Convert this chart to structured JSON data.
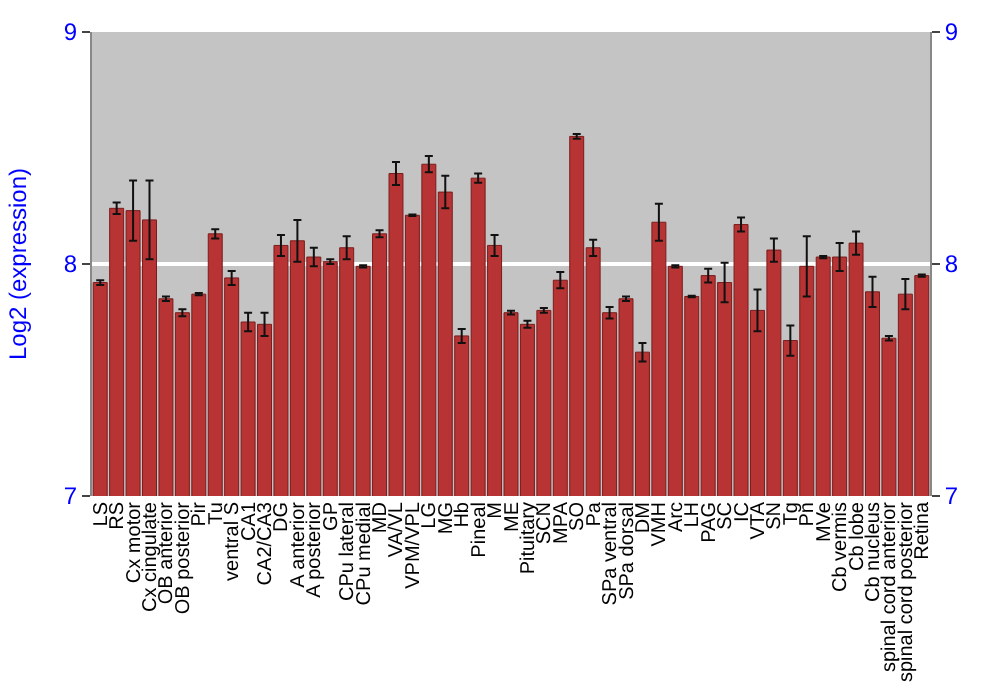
{
  "chart_data": {
    "type": "bar",
    "ylabel": "Log2 (expression)",
    "categories": [
      "LS",
      "RS",
      "Cx motor",
      "Cx cingulate",
      "OB anterior",
      "OB posterior",
      "Pir",
      "Tu",
      "ventral S",
      "CA1",
      "CA2/CA3",
      "DG",
      "A anterior",
      "A posterior",
      "GP",
      "CPu lateral",
      "CPu medial",
      "MD",
      "VA/VL",
      "VPM/VPL",
      "LG",
      "MG",
      "Hb",
      "Pineal",
      "M",
      "ME",
      "Pituitary",
      "SCN",
      "MPA",
      "SO",
      "Pa",
      "SPa ventral",
      "SPa dorsal",
      "DM",
      "VMH",
      "Arc",
      "LH",
      "PAG",
      "SC",
      "IC",
      "VTA",
      "SN",
      "Tg",
      "Pn",
      "MVe",
      "Cb vermis",
      "Cb lobe",
      "Cb nucleus",
      "spinal cord anterior",
      "spinal cord posterior",
      "Retina"
    ],
    "values": [
      7.92,
      8.24,
      8.23,
      8.19,
      7.85,
      7.79,
      7.87,
      8.13,
      7.94,
      7.75,
      7.74,
      8.08,
      8.1,
      8.03,
      8.01,
      8.07,
      7.99,
      8.13,
      8.39,
      8.21,
      8.43,
      8.31,
      7.69,
      8.37,
      8.08,
      7.79,
      7.74,
      7.8,
      7.93,
      8.55,
      8.07,
      7.79,
      7.85,
      7.62,
      8.18,
      7.99,
      7.86,
      7.95,
      7.92,
      8.17,
      7.8,
      8.06,
      7.67,
      7.99,
      8.03,
      8.03,
      8.09,
      7.88,
      7.68,
      7.87,
      7.95
    ],
    "errors": [
      0.01,
      0.025,
      0.13,
      0.17,
      0.01,
      0.015,
      0.005,
      0.02,
      0.03,
      0.04,
      0.05,
      0.045,
      0.09,
      0.04,
      0.01,
      0.05,
      0.005,
      0.015,
      0.05,
      0.003,
      0.035,
      0.07,
      0.03,
      0.02,
      0.045,
      0.008,
      0.015,
      0.01,
      0.035,
      0.01,
      0.035,
      0.025,
      0.01,
      0.04,
      0.08,
      0.005,
      0.003,
      0.03,
      0.085,
      0.03,
      0.09,
      0.05,
      0.065,
      0.13,
      0.005,
      0.06,
      0.05,
      0.065,
      0.01,
      0.065,
      0.005
    ],
    "color": "#b83434",
    "ylim": [
      7,
      9
    ],
    "yticks": [
      7,
      8,
      9
    ],
    "y2lim": [
      7,
      9
    ],
    "y2ticks": [
      7,
      8,
      9
    ],
    "grid": "y"
  }
}
